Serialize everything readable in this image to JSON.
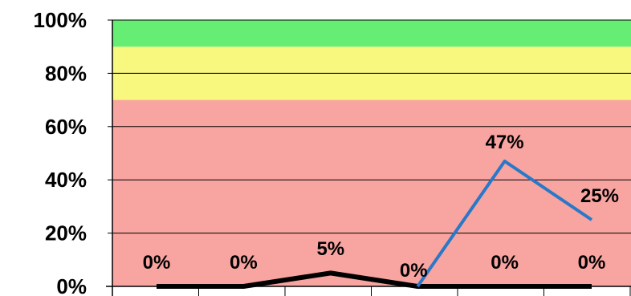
{
  "chart_data": {
    "type": "line",
    "title": "",
    "xlabel": "",
    "ylabel": "",
    "ylim": [
      0,
      100
    ],
    "y_ticks": [
      "0%",
      "20%",
      "40%",
      "60%",
      "80%",
      "100%"
    ],
    "y_tick_values": [
      0,
      20,
      40,
      60,
      80,
      100
    ],
    "category_count": 6,
    "bands": [
      {
        "from": 0,
        "to": 70,
        "color": "#f8a4a0"
      },
      {
        "from": 70,
        "to": 90,
        "color": "#f8f77e"
      },
      {
        "from": 90,
        "to": 100,
        "color": "#66ee74"
      }
    ],
    "series": [
      {
        "values": [
          0,
          0,
          5,
          0,
          0,
          0
        ],
        "color": "#000000"
      },
      {
        "values": [
          null,
          null,
          null,
          0,
          47,
          25
        ],
        "color": "#2a78c8"
      }
    ],
    "data_labels": [
      "0%",
      "0%",
      "5%",
      "0%",
      "0%",
      "0%",
      "47%",
      "25%"
    ],
    "grid": true,
    "legend": "none"
  }
}
